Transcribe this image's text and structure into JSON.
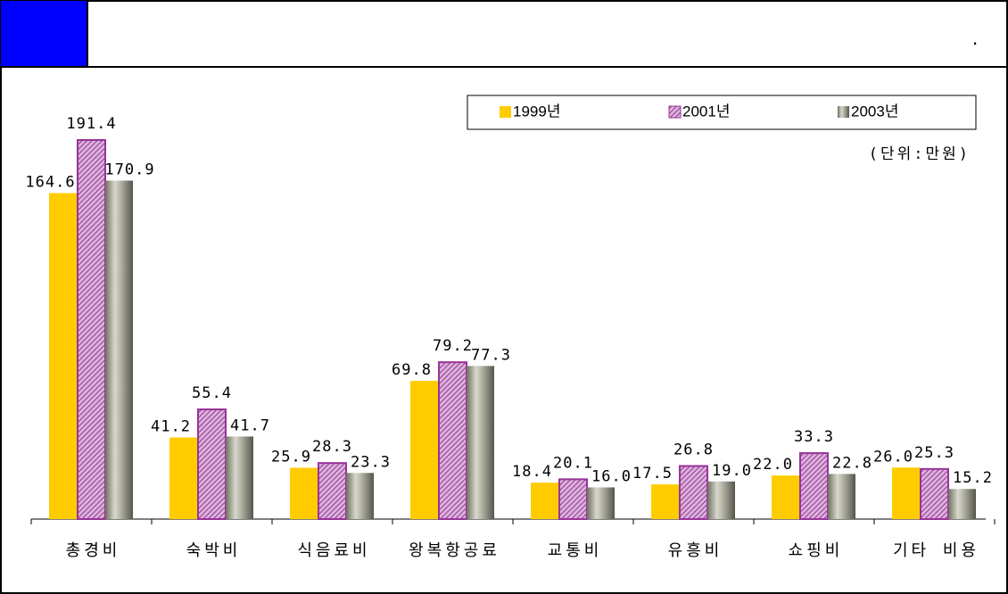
{
  "header": {
    "text": "."
  },
  "chart_data": {
    "type": "bar",
    "unit": "(단위:만원)",
    "categories": [
      "총경비",
      "숙박비",
      "식음료비",
      "왕복항공료",
      "교통비",
      "유흥비",
      "쇼핑비",
      "기타 비용"
    ],
    "series": [
      {
        "name": "1999년",
        "color": "#ffcc00",
        "values": [
          164.6,
          41.2,
          25.9,
          69.8,
          18.4,
          17.5,
          22.0,
          26.0
        ],
        "value_labels": [
          "164.6",
          "41.2",
          "25.9",
          "69.8",
          "18.4",
          "17.5",
          "22.0",
          "26.0"
        ]
      },
      {
        "name": "2001년",
        "color": "#993399",
        "values": [
          191.4,
          55.4,
          28.3,
          79.2,
          20.1,
          26.8,
          33.3,
          25.3
        ],
        "value_labels": [
          "191.4",
          "55.4",
          "28.3",
          "79.2",
          "20.1",
          "26.8",
          "33.3",
          "25.3"
        ]
      },
      {
        "name": "2003년",
        "color": "#8a8a7a",
        "values": [
          170.9,
          41.7,
          23.3,
          77.3,
          16.0,
          19.0,
          22.8,
          15.2
        ],
        "value_labels": [
          "170.9",
          "41.7",
          "23.3",
          "77.3",
          "16.0",
          "19.0",
          "22.8",
          "15.2"
        ]
      }
    ],
    "legend": "top-right"
  }
}
